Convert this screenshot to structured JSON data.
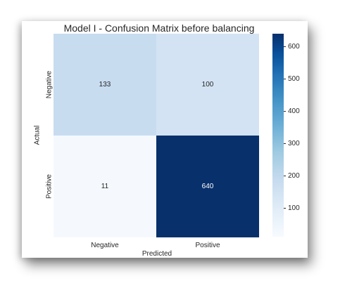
{
  "chart_data": {
    "type": "heatmap",
    "title": "Model I - Confusion Matrix before balancing",
    "xlabel": "Predicted",
    "ylabel": "Actual",
    "x_categories": [
      "Negative",
      "Positive"
    ],
    "y_categories": [
      "Negative",
      "Positive"
    ],
    "values": [
      [
        133,
        100
      ],
      [
        11,
        640
      ]
    ],
    "colormap": "Blues",
    "colorbar": {
      "ticks": [
        "100",
        "200",
        "300",
        "400",
        "500",
        "600"
      ],
      "range": [
        11,
        640
      ]
    },
    "colors": {
      "r0c0": "#c8dcf0",
      "r0c1": "#d3e3f3",
      "r1c0": "#f5f9fe",
      "r1c1": "#08306b"
    },
    "text_colors": {
      "light": "#262626",
      "dark": "#ffffff"
    }
  }
}
